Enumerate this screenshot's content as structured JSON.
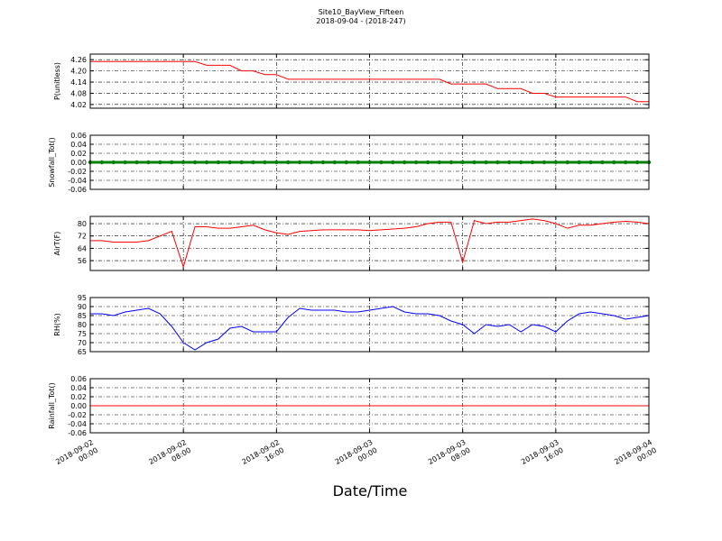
{
  "title": "Site10_BayView_Fifteen",
  "subtitle": "2018-09-04 - (2018-247)",
  "xlabel": "Date/Time",
  "x": [
    "2018-09-02 00:00",
    "2018-09-02 01:00",
    "2018-09-02 02:00",
    "2018-09-02 03:00",
    "2018-09-02 04:00",
    "2018-09-02 05:00",
    "2018-09-02 06:00",
    "2018-09-02 07:00",
    "2018-09-02 08:00",
    "2018-09-02 09:00",
    "2018-09-02 10:00",
    "2018-09-02 11:00",
    "2018-09-02 12:00",
    "2018-09-02 13:00",
    "2018-09-02 14:00",
    "2018-09-02 15:00",
    "2018-09-02 16:00",
    "2018-09-02 17:00",
    "2018-09-02 18:00",
    "2018-09-02 19:00",
    "2018-09-02 20:00",
    "2018-09-02 21:00",
    "2018-09-02 22:00",
    "2018-09-02 23:00",
    "2018-09-03 00:00",
    "2018-09-03 01:00",
    "2018-09-03 02:00",
    "2018-09-03 03:00",
    "2018-09-03 04:00",
    "2018-09-03 05:00",
    "2018-09-03 06:00",
    "2018-09-03 07:00",
    "2018-09-03 08:00",
    "2018-09-03 09:00",
    "2018-09-03 10:00",
    "2018-09-03 11:00",
    "2018-09-03 12:00",
    "2018-09-03 13:00",
    "2018-09-03 14:00",
    "2018-09-03 15:00",
    "2018-09-03 16:00",
    "2018-09-03 17:00",
    "2018-09-03 18:00",
    "2018-09-03 19:00",
    "2018-09-03 20:00",
    "2018-09-03 21:00",
    "2018-09-03 22:00",
    "2018-09-03 23:00",
    "2018-09-04 00:00"
  ],
  "xlim": [
    "2018-09-02 00:00",
    "2018-09-04 00:00"
  ],
  "xticks": [
    "2018-09-02 00:00",
    "2018-09-02 08:00",
    "2018-09-02 16:00",
    "2018-09-03 00:00",
    "2018-09-03 08:00",
    "2018-09-03 16:00",
    "2018-09-04 00:00"
  ],
  "chart_data": [
    {
      "type": "line",
      "ylabel": "P(unitless)",
      "ylim": [
        4.0,
        4.29
      ],
      "yticks": [
        4.02,
        4.08,
        4.14,
        {
          "value": 4.2,
          "label": "4.20"
        },
        4.26
      ],
      "grid": true,
      "series": [
        {
          "color": "#ff0000",
          "values": [
            4.25,
            4.25,
            4.25,
            4.25,
            4.25,
            4.25,
            4.25,
            4.25,
            4.25,
            4.25,
            4.23,
            4.23,
            4.23,
            4.2,
            4.2,
            4.18,
            4.18,
            4.155,
            4.155,
            4.155,
            4.155,
            4.155,
            4.155,
            4.155,
            4.155,
            4.155,
            4.155,
            4.155,
            4.155,
            4.155,
            4.155,
            4.13,
            4.13,
            4.13,
            4.13,
            4.105,
            4.105,
            4.105,
            4.08,
            4.08,
            4.06,
            4.06,
            4.06,
            4.06,
            4.06,
            4.06,
            4.06,
            4.035,
            4.035
          ]
        }
      ]
    },
    {
      "type": "line",
      "ylabel": "Snowfall_Tot()",
      "ylim": [
        -0.06,
        0.06
      ],
      "yticks": [
        -0.06,
        -0.04,
        -0.02,
        {
          "value": 0,
          "label": "0.00"
        },
        0.02,
        0.04,
        0.06
      ],
      "grid": true,
      "markers": true,
      "series": [
        {
          "color": "#008000",
          "values": [
            0,
            0,
            0,
            0,
            0,
            0,
            0,
            0,
            0,
            0,
            0,
            0,
            0,
            0,
            0,
            0,
            0,
            0,
            0,
            0,
            0,
            0,
            0,
            0,
            0,
            0,
            0,
            0,
            0,
            0,
            0,
            0,
            0,
            0,
            0,
            0,
            0,
            0,
            0,
            0,
            0,
            0,
            0,
            0,
            0,
            0,
            0,
            0,
            0
          ]
        }
      ]
    },
    {
      "type": "line",
      "ylabel": "AirT(F)",
      "ylim": [
        49.6,
        84.7
      ],
      "yticks": [
        56,
        64,
        72,
        80
      ],
      "grid": true,
      "series": [
        {
          "color": "#ff0000",
          "values": [
            69,
            69,
            68,
            68,
            68,
            69,
            72,
            75,
            52,
            78,
            78,
            77,
            77,
            78,
            79,
            76,
            74,
            73,
            75,
            75.5,
            76,
            76,
            76,
            76,
            75.5,
            76,
            76.5,
            77,
            78,
            80,
            81,
            81,
            55,
            82,
            80,
            81,
            81,
            82,
            83,
            82,
            80,
            77,
            79,
            79,
            80,
            81,
            81.5,
            81,
            80
          ]
        }
      ]
    },
    {
      "type": "line",
      "ylabel": "RH(%)",
      "ylim": [
        65,
        95
      ],
      "yticks": [
        65,
        70,
        75,
        80,
        85,
        90,
        95
      ],
      "grid": true,
      "series": [
        {
          "color": "#0000ff",
          "values": [
            86,
            86,
            85,
            87,
            88,
            89,
            86,
            79,
            70,
            66,
            70,
            72,
            78,
            79,
            76,
            76,
            76,
            84,
            89,
            88,
            88,
            88,
            87,
            87,
            88,
            89,
            90,
            87,
            86,
            86,
            85,
            82,
            80,
            75,
            80,
            79,
            80,
            76,
            80,
            79,
            76,
            82,
            86,
            87,
            86,
            85,
            83,
            84,
            85
          ]
        }
      ]
    },
    {
      "type": "line",
      "ylabel": "Rainfall_Tot()",
      "ylim": [
        -0.06,
        0.06
      ],
      "yticks": [
        -0.06,
        -0.04,
        -0.02,
        {
          "value": 0,
          "label": "0.00"
        },
        0.02,
        0.04,
        0.06
      ],
      "grid": true,
      "series": [
        {
          "color": "#ff0000",
          "values": [
            0,
            0,
            0,
            0,
            0,
            0,
            0,
            0,
            0,
            0,
            0,
            0,
            0,
            0,
            0,
            0,
            0,
            0,
            0,
            0,
            0,
            0,
            0,
            0,
            0,
            0,
            0,
            0,
            0,
            0,
            0,
            0,
            0,
            0,
            0,
            0,
            0,
            0,
            0,
            0,
            0,
            0,
            0,
            0,
            0,
            0,
            0,
            0,
            0
          ]
        }
      ]
    }
  ]
}
